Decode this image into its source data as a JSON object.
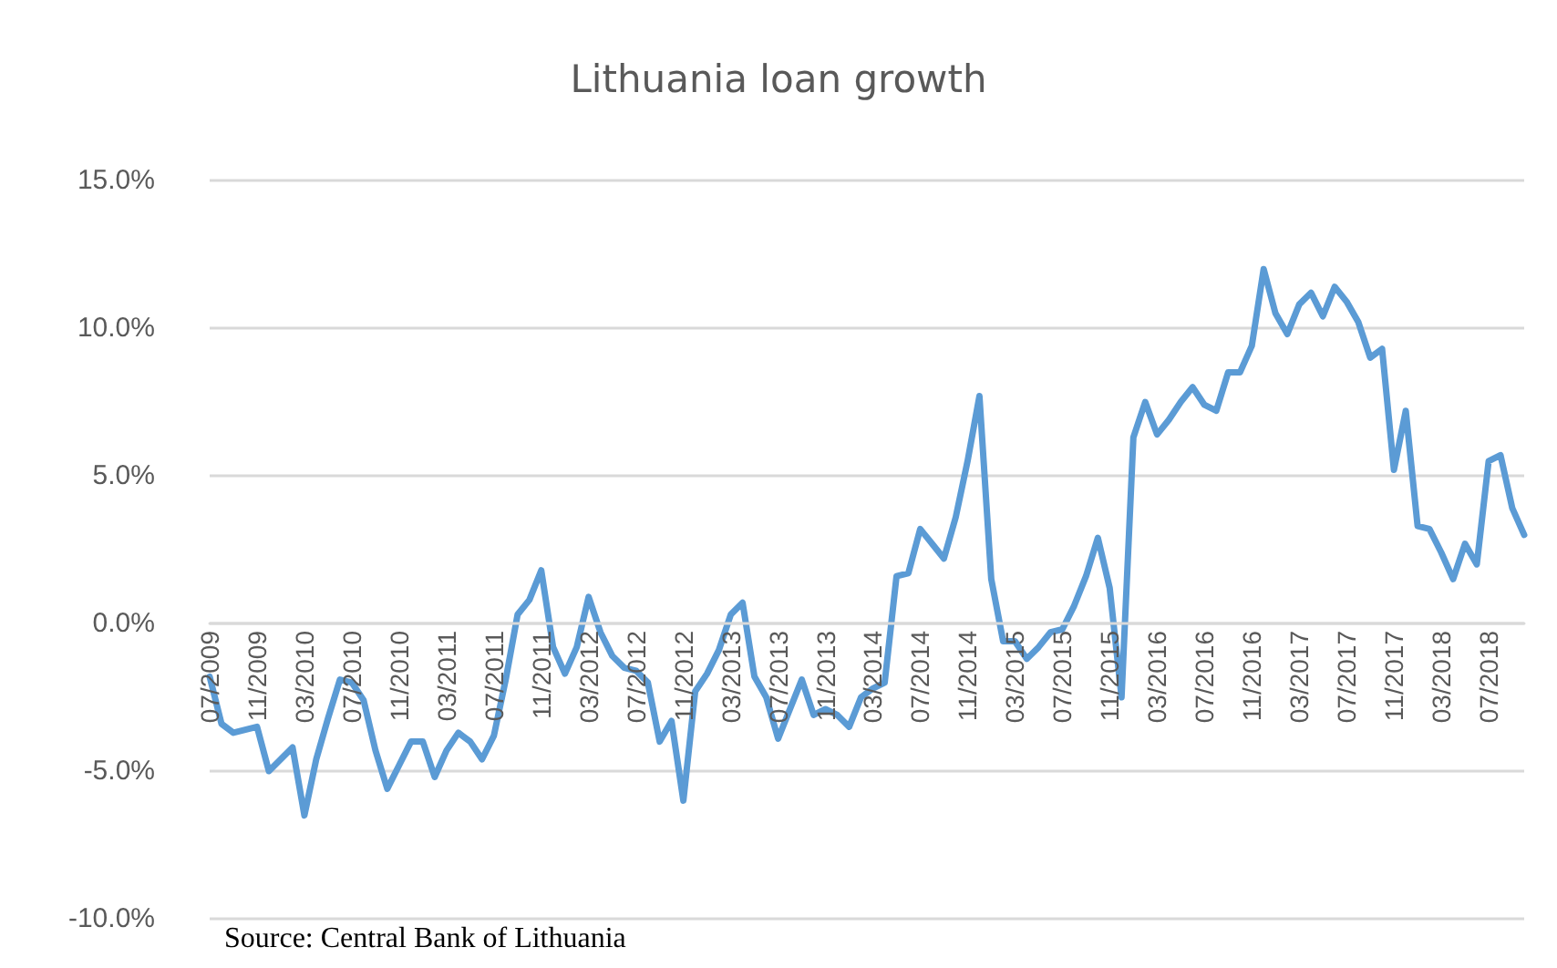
{
  "chart_data": {
    "type": "line",
    "title": "Lithuania loan growth",
    "categories": [
      "07/2009",
      null,
      null,
      null,
      "11/2009",
      null,
      null,
      null,
      "03/2010",
      null,
      null,
      null,
      "07/2010",
      null,
      null,
      null,
      "11/2010",
      null,
      null,
      null,
      "03/2011",
      null,
      null,
      null,
      "07/2011",
      null,
      null,
      null,
      "11/2011",
      null,
      null,
      null,
      "03/2012",
      null,
      null,
      null,
      "07/2012",
      null,
      null,
      null,
      "11/2012",
      null,
      null,
      null,
      "03/2013",
      null,
      null,
      null,
      "07/2013",
      null,
      null,
      null,
      "11/2013",
      null,
      null,
      null,
      "03/2014",
      null,
      null,
      null,
      "07/2014",
      null,
      null,
      null,
      "11/2014",
      null,
      null,
      null,
      "03/2015",
      null,
      null,
      null,
      "07/2015",
      null,
      null,
      null,
      "11/2015",
      null,
      null,
      null,
      "03/2016",
      null,
      null,
      null,
      "07/2016",
      null,
      null,
      null,
      "11/2016",
      null,
      null,
      null,
      "03/2017",
      null,
      null,
      null,
      "07/2017",
      null,
      null,
      null,
      "11/2017",
      null,
      null,
      null,
      "03/2018",
      null,
      null,
      null,
      "07/2018",
      null,
      null,
      null
    ],
    "series": [
      {
        "color": "#5b9bd5",
        "values": [
          -1.8,
          -3.4,
          -3.7,
          -3.6,
          -3.5,
          -5.0,
          -4.6,
          -4.2,
          -6.5,
          -4.6,
          -3.2,
          -1.9,
          -2.0,
          -2.6,
          -4.3,
          -5.6,
          -4.8,
          -4.0,
          -4.0,
          -5.2,
          -4.3,
          -3.7,
          -4.0,
          -4.6,
          -3.8,
          -1.9,
          0.3,
          0.8,
          1.8,
          -0.8,
          -1.7,
          -0.8,
          0.9,
          -0.3,
          -1.1,
          -1.5,
          -1.6,
          -2.0,
          -4.0,
          -3.3,
          -6.0,
          -2.3,
          -1.7,
          -0.9,
          0.3,
          0.7,
          -1.8,
          -2.5,
          -3.9,
          -2.9,
          -1.9,
          -3.1,
          -2.9,
          -3.1,
          -3.5,
          -2.5,
          -2.2,
          -2.0,
          1.6,
          1.7,
          3.2,
          2.7,
          2.2,
          3.6,
          5.5,
          7.7,
          1.5,
          -0.6,
          -0.6,
          -1.2,
          -0.8,
          -0.3,
          -0.2,
          0.6,
          1.6,
          2.9,
          1.2,
          -2.5,
          6.3,
          7.5,
          6.4,
          6.9,
          7.5,
          8.0,
          7.4,
          7.2,
          8.5,
          8.5,
          9.4,
          12.0,
          10.5,
          9.8,
          10.8,
          11.2,
          10.4,
          11.4,
          10.9,
          10.2,
          9.0,
          9.3,
          5.2,
          7.2,
          3.3,
          3.2,
          2.4,
          1.5,
          2.7,
          2.0,
          5.5,
          5.7,
          3.9,
          3.0
        ]
      }
    ],
    "ylim": [
      -10,
      15
    ],
    "yticks": [
      {
        "value": -10,
        "label": "-10.0%"
      },
      {
        "value": -5,
        "label": "-5.0%"
      },
      {
        "value": 0,
        "label": "0.0%"
      },
      {
        "value": 5,
        "label": "5.0%"
      },
      {
        "value": 10,
        "label": "10.0%"
      },
      {
        "value": 15,
        "label": "15.0%"
      }
    ],
    "grid": "y",
    "marker": "none",
    "line_style": "solid",
    "annotations": [
      "Source: Central Bank of Lithuania"
    ]
  }
}
